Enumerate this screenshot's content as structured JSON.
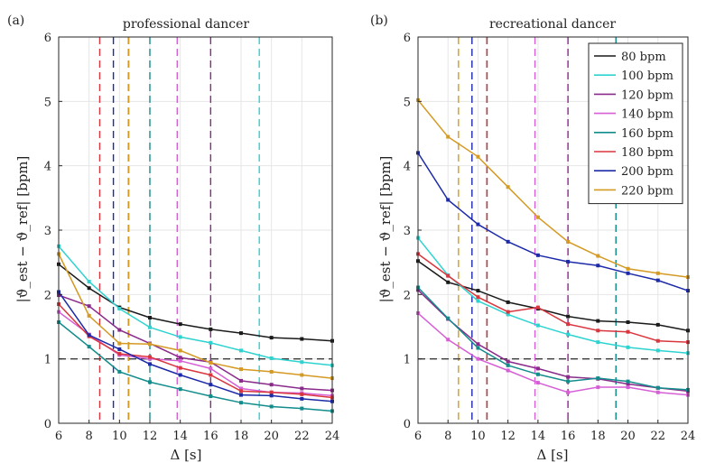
{
  "chart_data": [
    {
      "type": "line",
      "panel_label": "(a)",
      "title": "professional dancer",
      "xlabel": "Δ [s]",
      "ylabel": "|ϑ_est − ϑ_ref| [bpm]",
      "xlim": [
        6,
        24
      ],
      "ylim": [
        0,
        6
      ],
      "xticks": [
        6,
        8,
        10,
        12,
        14,
        16,
        18,
        20,
        22,
        24
      ],
      "yticks": [
        0,
        1,
        2,
        3,
        4,
        5,
        6
      ],
      "grid": true,
      "reference_line": 1,
      "x": [
        6,
        8,
        10,
        12,
        14,
        16,
        18,
        20,
        22,
        24
      ],
      "series": [
        {
          "name": "80 bpm",
          "color": "#1a1a1a",
          "values": [
            2.47,
            2.1,
            1.8,
            1.64,
            1.54,
            1.46,
            1.4,
            1.33,
            1.31,
            1.28
          ],
          "vline": 10.6
        },
        {
          "name": "100 bpm",
          "color": "#2ed3d0",
          "values": [
            2.75,
            2.2,
            1.78,
            1.49,
            1.34,
            1.25,
            1.13,
            1.01,
            0.95,
            0.9
          ],
          "vline": 19.2
        },
        {
          "name": "120 bpm",
          "color": "#8a2a8a",
          "values": [
            1.99,
            1.82,
            1.45,
            1.24,
            1.02,
            0.95,
            0.66,
            0.6,
            0.54,
            0.51
          ],
          "vline": 16.0
        },
        {
          "name": "140 bpm",
          "color": "#d65fd6",
          "values": [
            1.73,
            1.38,
            1.06,
            1.0,
            0.97,
            0.85,
            0.54,
            0.48,
            0.47,
            0.43
          ],
          "vline": 13.8
        },
        {
          "name": "160 bpm",
          "color": "#138c8c",
          "values": [
            1.57,
            1.19,
            0.8,
            0.64,
            0.53,
            0.42,
            0.32,
            0.26,
            0.23,
            0.19
          ],
          "vline": 12.0
        },
        {
          "name": "180 bpm",
          "color": "#d9363e",
          "values": [
            1.85,
            1.35,
            1.08,
            1.03,
            0.86,
            0.75,
            0.5,
            0.48,
            0.45,
            0.4
          ],
          "vline": 8.7
        },
        {
          "name": "200 bpm",
          "color": "#1c2aa8",
          "values": [
            2.04,
            1.37,
            1.15,
            0.92,
            0.75,
            0.6,
            0.44,
            0.43,
            0.38,
            0.34
          ],
          "vline": 9.6
        },
        {
          "name": "220 bpm",
          "color": "#d49a24",
          "values": [
            2.63,
            1.67,
            1.24,
            1.23,
            1.13,
            0.94,
            0.84,
            0.8,
            0.75,
            0.7
          ],
          "vline": 10.6
        }
      ]
    },
    {
      "type": "line",
      "panel_label": "(b)",
      "title": "recreational dancer",
      "xlabel": "Δ [s]",
      "ylabel": "|ϑ_est − ϑ_ref| [bpm]",
      "xlim": [
        6,
        24
      ],
      "ylim": [
        0,
        6
      ],
      "xticks": [
        6,
        8,
        10,
        12,
        14,
        16,
        18,
        20,
        22,
        24
      ],
      "yticks": [
        0,
        1,
        2,
        3,
        4,
        5,
        6
      ],
      "grid": true,
      "reference_line": 1,
      "legend_position": "top-right",
      "x": [
        6,
        8,
        10,
        12,
        14,
        16,
        18,
        20,
        22,
        24
      ],
      "series": [
        {
          "name": "80 bpm",
          "color": "#1a1a1a",
          "values": [
            2.52,
            2.19,
            2.06,
            1.88,
            1.78,
            1.66,
            1.59,
            1.57,
            1.53,
            1.44
          ],
          "vline": 10.6
        },
        {
          "name": "100 bpm",
          "color": "#2ed3d0",
          "values": [
            2.88,
            2.3,
            1.9,
            1.69,
            1.52,
            1.38,
            1.26,
            1.18,
            1.13,
            1.09
          ],
          "vline": 19.2
        },
        {
          "name": "120 bpm",
          "color": "#8a2a8a",
          "values": [
            2.07,
            1.62,
            1.23,
            0.96,
            0.85,
            0.72,
            0.69,
            0.61,
            0.55,
            0.5
          ],
          "vline": 16.0
        },
        {
          "name": "140 bpm",
          "color": "#d65fd6",
          "values": [
            1.71,
            1.3,
            1.0,
            0.82,
            0.63,
            0.48,
            0.56,
            0.56,
            0.48,
            0.44
          ],
          "vline": 13.8
        },
        {
          "name": "160 bpm",
          "color": "#138c8c",
          "values": [
            2.11,
            1.63,
            1.17,
            0.9,
            0.76,
            0.65,
            0.7,
            0.65,
            0.55,
            0.52
          ],
          "vline": 19.2
        },
        {
          "name": "180 bpm",
          "color": "#d9363e",
          "values": [
            2.63,
            2.29,
            1.96,
            1.73,
            1.8,
            1.54,
            1.44,
            1.42,
            1.28,
            1.26
          ],
          "vline": 10.6
        },
        {
          "name": "200 bpm",
          "color": "#1c2aa8",
          "values": [
            4.2,
            3.47,
            3.09,
            2.82,
            2.61,
            2.51,
            2.45,
            2.33,
            2.22,
            2.06
          ],
          "vline": 9.6
        },
        {
          "name": "220 bpm",
          "color": "#d49a24",
          "values": [
            5.02,
            4.45,
            4.14,
            3.67,
            3.2,
            2.82,
            2.6,
            2.4,
            2.33,
            2.27
          ],
          "vline": 8.7
        }
      ]
    }
  ],
  "colors": {
    "grid": "#e6e6e6",
    "axis": "#262626",
    "reference": "#3a3a3a"
  }
}
